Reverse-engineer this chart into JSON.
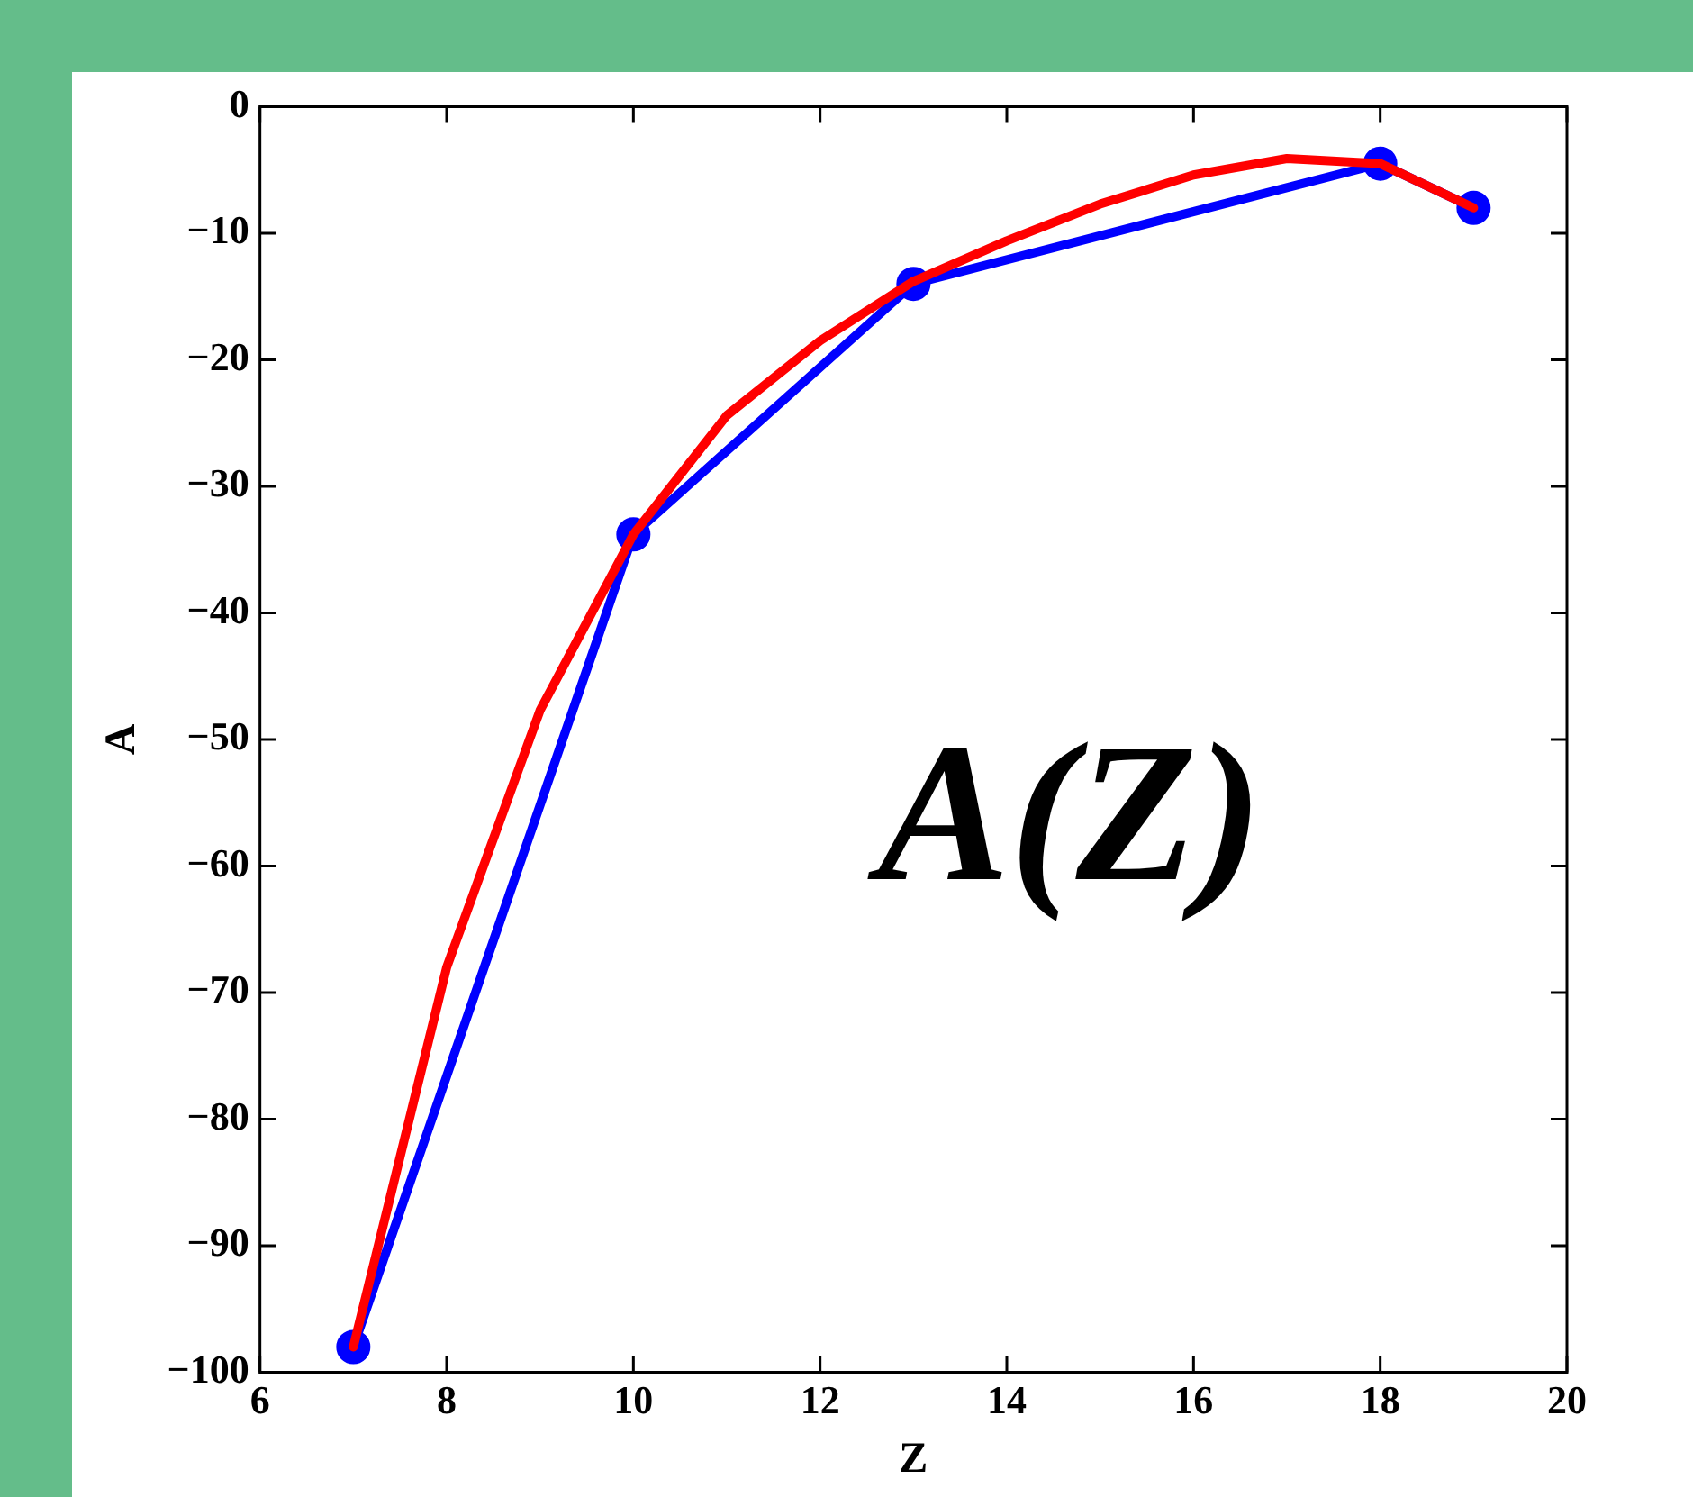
{
  "chart_data": {
    "type": "line",
    "xlabel": "Z",
    "ylabel": "A",
    "annotations": [
      "A(Z)"
    ],
    "series": [
      {
        "color": "#0000ff",
        "marker": "circle",
        "x": [
          7,
          10,
          13,
          18,
          19
        ],
        "values": [
          -98,
          -33.8,
          -14,
          -4.5,
          -8
        ]
      },
      {
        "color": "#ff0000",
        "marker": "none",
        "x": [
          7,
          8,
          9,
          10,
          11,
          12,
          13,
          14,
          15,
          16,
          17,
          18,
          19
        ],
        "values": [
          -98,
          -68,
          -47.7,
          -33.8,
          -24.4,
          -18.5,
          -13.8,
          -10.6,
          -7.7,
          -5.4,
          -4.1,
          -4.5,
          -8
        ]
      }
    ],
    "xlim": [
      6,
      20
    ],
    "xticks": [
      6,
      8,
      10,
      12,
      14,
      16,
      18,
      20
    ],
    "ylim": [
      -100,
      0
    ],
    "yticks": [
      -100,
      -90,
      -80,
      -70,
      -60,
      -50,
      -40,
      -30,
      -20,
      -10,
      0
    ],
    "grid": false,
    "legend": false,
    "line_style": "solid"
  }
}
